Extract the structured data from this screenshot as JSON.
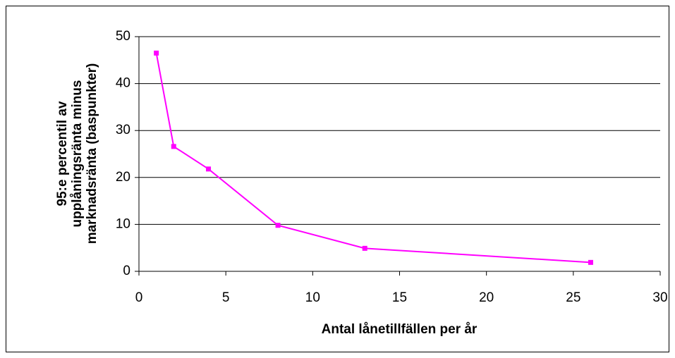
{
  "chart_data": {
    "type": "line",
    "xlabel": "Antal lånetillfällen per år",
    "ylabel": [
      "95:e percentil av",
      "upplåningsränta minus",
      "marknadsränta (baspunkter)"
    ],
    "x": [
      1,
      2,
      4,
      8,
      13,
      26
    ],
    "values": [
      46.5,
      26.6,
      21.8,
      9.8,
      4.9,
      1.9
    ],
    "color": "#ff00ff",
    "xlim": [
      0,
      30
    ],
    "xticks": [
      0,
      5,
      10,
      15,
      20,
      25,
      30
    ],
    "ylim": [
      0,
      50
    ],
    "yticks": [
      0,
      10,
      20,
      30,
      40,
      50
    ],
    "grid": true
  }
}
